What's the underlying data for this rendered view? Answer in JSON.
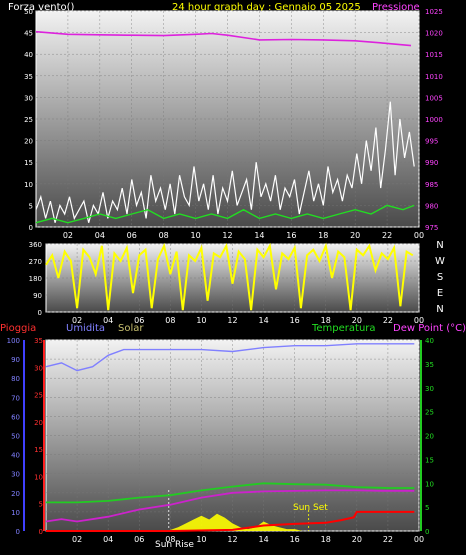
{
  "header": {
    "left_label": "Forza vento()",
    "title": "24 hour graph day : Gennaio 05 2025",
    "right_label": "Pressione"
  },
  "colors": {
    "background": "#000000",
    "plot_top": "#f2f2f2",
    "plot_bottom": "#4a4a4a",
    "wind": "#ffffff",
    "gust": "#22dd22",
    "pressure": "#dd22dd",
    "direction": "#ffff00",
    "rain": "#ff2222",
    "humidity": "#8080ff",
    "solar": "#ffff00",
    "temperature": "#22cc22",
    "dewpoint": "#cc22cc",
    "rain_rate": "#ff0000"
  },
  "chart_data": [
    {
      "type": "line",
      "name": "wind-pressure",
      "x_ticks": [
        "02",
        "04",
        "06",
        "08",
        "10",
        "12",
        "14",
        "16",
        "18",
        "20",
        "22",
        "00"
      ],
      "left_axis": {
        "ticks": [
          0,
          5,
          10,
          15,
          20,
          25,
          30,
          35,
          40,
          45,
          50
        ],
        "ylim": [
          0,
          50
        ]
      },
      "right_axis": {
        "ticks": [
          975,
          980,
          985,
          990,
          995,
          1000,
          1005,
          1010,
          1015,
          1020,
          1025
        ],
        "ylim": [
          975,
          1025
        ]
      },
      "series": [
        {
          "name": "Pressione",
          "axis": "right",
          "color": "#dd22dd",
          "x": [
            0,
            2,
            4,
            6,
            8,
            10,
            11,
            12,
            14,
            16,
            18,
            20,
            22,
            23.5
          ],
          "y": [
            1020.2,
            1019.6,
            1019.5,
            1019.4,
            1019.3,
            1019.6,
            1019.8,
            1019.4,
            1018.3,
            1018.4,
            1018.3,
            1018.1,
            1017.5,
            1017.0
          ]
        },
        {
          "name": "",
          "axis": "left",
          "color": "#ffffff",
          "x": [
            0.0,
            0.3,
            0.6,
            0.9,
            1.2,
            1.5,
            1.8,
            2.1,
            2.4,
            2.7,
            3.0,
            3.3,
            3.6,
            3.9,
            4.2,
            4.5,
            4.8,
            5.1,
            5.4,
            5.7,
            6.0,
            6.3,
            6.6,
            6.9,
            7.2,
            7.5,
            7.8,
            8.1,
            8.4,
            8.7,
            9.0,
            9.3,
            9.6,
            9.9,
            10.2,
            10.5,
            10.8,
            11.1,
            11.4,
            11.7,
            12.0,
            12.3,
            12.6,
            12.9,
            13.2,
            13.5,
            13.8,
            14.1,
            14.4,
            14.7,
            15.0,
            15.3,
            15.6,
            15.9,
            16.2,
            16.5,
            16.8,
            17.1,
            17.4,
            17.7,
            18.0,
            18.3,
            18.6,
            18.9,
            19.2,
            19.5,
            19.8,
            20.1,
            20.4,
            20.7,
            21.0,
            21.3,
            21.6,
            21.9,
            22.2,
            22.5,
            22.8,
            23.1,
            23.4,
            23.7
          ],
          "y": [
            4,
            7,
            2,
            6,
            1,
            5,
            3,
            7,
            2,
            4,
            6,
            1,
            5,
            3,
            8,
            2,
            6,
            4,
            9,
            3,
            11,
            5,
            8,
            2,
            12,
            6,
            9,
            4,
            10,
            3,
            12,
            7,
            5,
            14,
            6,
            10,
            4,
            12,
            3,
            9,
            6,
            13,
            5,
            8,
            11,
            4,
            15,
            7,
            10,
            6,
            12,
            4,
            9,
            7,
            11,
            3,
            8,
            13,
            6,
            10,
            5,
            14,
            8,
            11,
            6,
            12,
            9,
            17,
            10,
            20,
            13,
            23,
            9,
            18,
            29,
            12,
            25,
            16,
            22,
            14
          ]
        },
        {
          "name": "",
          "axis": "left",
          "color": "#22dd22",
          "x": [
            0,
            1,
            2,
            3,
            4,
            5,
            6,
            7,
            8,
            9,
            10,
            11,
            12,
            13,
            14,
            15,
            16,
            17,
            18,
            19,
            20,
            21,
            22,
            23,
            23.7
          ],
          "y": [
            1,
            2,
            1,
            2,
            3,
            2,
            3,
            4,
            2,
            3,
            2,
            3,
            2,
            4,
            2,
            3,
            2,
            3,
            2,
            3,
            4,
            3,
            5,
            4,
            5
          ]
        }
      ]
    },
    {
      "type": "line",
      "name": "wind-direction",
      "x_ticks": [
        "02",
        "04",
        "06",
        "08",
        "10",
        "12",
        "14",
        "16",
        "18",
        "20",
        "22",
        "00"
      ],
      "left_axis": {
        "ticks": [
          0,
          90,
          180,
          270,
          360
        ],
        "ylim": [
          0,
          360
        ]
      },
      "right_labels": [
        "N",
        "W",
        "S",
        "E",
        "N"
      ],
      "series": [
        {
          "name": "",
          "color": "#ffff00",
          "x": [
            0,
            0.4,
            0.8,
            1.2,
            1.6,
            2.0,
            2.4,
            2.8,
            3.2,
            3.6,
            4.0,
            4.4,
            4.8,
            5.2,
            5.6,
            6.0,
            6.4,
            6.8,
            7.2,
            7.6,
            8.0,
            8.4,
            8.8,
            9.2,
            9.6,
            10.0,
            10.4,
            10.8,
            11.2,
            11.6,
            12.0,
            12.4,
            12.8,
            13.2,
            13.6,
            14.0,
            14.4,
            14.8,
            15.2,
            15.6,
            16.0,
            16.4,
            16.8,
            17.2,
            17.6,
            18.0,
            18.4,
            18.8,
            19.2,
            19.6,
            20.0,
            20.4,
            20.8,
            21.2,
            21.6,
            22.0,
            22.4,
            22.8,
            23.2,
            23.6
          ],
          "y": [
            250,
            300,
            180,
            320,
            270,
            20,
            330,
            290,
            200,
            350,
            10,
            310,
            270,
            340,
            100,
            300,
            330,
            20,
            280,
            350,
            200,
            320,
            10,
            300,
            270,
            340,
            60,
            310,
            290,
            350,
            150,
            320,
            280,
            10,
            330,
            290,
            350,
            120,
            310,
            280,
            340,
            20,
            300,
            330,
            270,
            350,
            180,
            320,
            290,
            10,
            330,
            300,
            350,
            220,
            310,
            280,
            340,
            30,
            320,
            300
          ]
        }
      ]
    },
    {
      "type": "line",
      "name": "weather-multi",
      "x_ticks": [
        "02",
        "04",
        "06",
        "08",
        "10",
        "12",
        "14",
        "16",
        "18",
        "20",
        "22",
        "00"
      ],
      "left_axis": {
        "ticks": [
          0,
          10,
          20,
          30,
          40,
          50,
          60,
          70,
          80,
          90,
          100
        ],
        "ylim": [
          0,
          100
        ]
      },
      "rain_axis": {
        "ticks": [
          0,
          5,
          10,
          15,
          20,
          25,
          30,
          35
        ],
        "ylim": [
          0,
          35
        ]
      },
      "right_axis": {
        "ticks": [
          0,
          5,
          10,
          15,
          20,
          25,
          30,
          35,
          40
        ],
        "ylim": [
          0,
          40
        ]
      },
      "legend": [
        "Pioggia",
        "Umidita",
        "Solar",
        "Temperatura",
        "Dew Point (°C)"
      ],
      "annotations": [
        "Sun Rise",
        "Sun Set"
      ],
      "series": [
        {
          "name": "Umidita",
          "color": "#8080ff",
          "axis": "left",
          "x": [
            0,
            1,
            2,
            3,
            4,
            5,
            6,
            8,
            10,
            12,
            14,
            16,
            18,
            20,
            22,
            23.7
          ],
          "y": [
            86,
            88,
            84,
            86,
            92,
            95,
            95,
            95,
            95,
            94,
            96,
            97,
            97,
            98,
            98,
            98
          ]
        },
        {
          "name": "Temperatura",
          "color": "#22cc22",
          "axis": "right",
          "x": [
            0,
            2,
            4,
            6,
            8,
            10,
            12,
            14,
            16,
            18,
            20,
            22,
            23.7
          ],
          "y": [
            6,
            6,
            6.3,
            7,
            7.5,
            8.5,
            9.3,
            10,
            9.8,
            9.7,
            9.2,
            9,
            9
          ]
        },
        {
          "name": "Dew Point (°C)",
          "color": "#cc22cc",
          "axis": "right",
          "x": [
            0,
            1,
            2,
            4,
            6,
            8,
            10,
            12,
            14,
            16,
            18,
            20,
            22,
            23.7
          ],
          "y": [
            2,
            2.5,
            2,
            3,
            4.5,
            5.5,
            7,
            8,
            8.3,
            8.4,
            8.5,
            8.5,
            8.4,
            8.4
          ]
        },
        {
          "name": "Pioggia",
          "color": "#ff0000",
          "axis": "rain",
          "x": [
            0,
            8,
            12,
            14,
            16,
            18,
            19,
            19.8,
            20,
            22,
            23.7
          ],
          "y": [
            0,
            0,
            0.2,
            1,
            1.3,
            1.5,
            2,
            2.5,
            3.5,
            3.5,
            3.5
          ]
        },
        {
          "name": "Solar",
          "color": "#ffff00",
          "axis": "left",
          "x": [
            7.8,
            8.5,
            9,
            9.5,
            10,
            10.5,
            11,
            11.5,
            12,
            12.5,
            13,
            13.5,
            14,
            14.5,
            15,
            15.5,
            16,
            16.5
          ],
          "y": [
            0,
            2,
            4,
            6,
            8,
            6,
            9,
            7,
            4,
            2,
            1,
            2,
            5,
            3,
            2,
            1,
            1,
            0
          ]
        }
      ]
    }
  ]
}
